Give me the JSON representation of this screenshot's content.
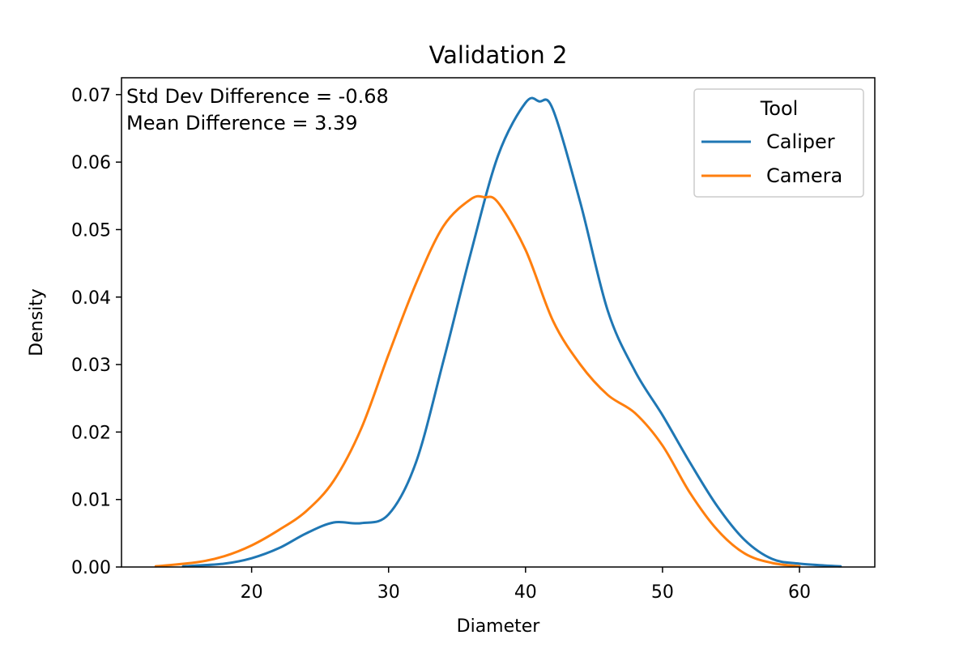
{
  "chart_data": {
    "type": "line",
    "title": "Validation 2",
    "xlabel": "Diameter",
    "ylabel": "Density",
    "xlim": [
      10.5,
      65.5
    ],
    "ylim": [
      0.0,
      0.0725
    ],
    "x_ticks": [
      20,
      30,
      40,
      50,
      60
    ],
    "y_ticks": [
      0.0,
      0.01,
      0.02,
      0.03,
      0.04,
      0.05,
      0.06,
      0.07
    ],
    "y_tick_labels": [
      "0.00",
      "0.01",
      "0.02",
      "0.03",
      "0.04",
      "0.05",
      "0.06",
      "0.07"
    ],
    "grid": false,
    "annotations": [
      "Std Dev Difference = -0.68",
      "Mean Difference = 3.39"
    ],
    "legend": {
      "title": "Tool",
      "placement": "top-right"
    },
    "series": [
      {
        "name": "Caliper",
        "color": "#1f77b4",
        "x": [
          15,
          18,
          20,
          22,
          24,
          26,
          28,
          30,
          32,
          34,
          36,
          38,
          40,
          41,
          42,
          44,
          46,
          48,
          50,
          52,
          54,
          56,
          58,
          60,
          63
        ],
        "y": [
          0.0001,
          0.0005,
          0.0013,
          0.0028,
          0.005,
          0.0066,
          0.0065,
          0.0078,
          0.0155,
          0.0305,
          0.0465,
          0.061,
          0.0688,
          0.069,
          0.0678,
          0.054,
          0.038,
          0.029,
          0.0225,
          0.0155,
          0.009,
          0.004,
          0.0012,
          0.0005,
          0.0001
        ]
      },
      {
        "name": "Camera",
        "color": "#ff7f0e",
        "x": [
          13,
          16,
          18,
          20,
          22,
          24,
          26,
          28,
          30,
          32,
          34,
          36,
          37,
          38,
          40,
          42,
          44,
          46,
          48,
          50,
          52,
          54,
          56,
          58,
          60
        ],
        "y": [
          0.0001,
          0.0007,
          0.0016,
          0.0032,
          0.0055,
          0.0083,
          0.0128,
          0.0205,
          0.0315,
          0.042,
          0.0505,
          0.0545,
          0.0548,
          0.054,
          0.047,
          0.0365,
          0.03,
          0.0255,
          0.0228,
          0.018,
          0.011,
          0.0055,
          0.002,
          0.0006,
          0.0001
        ]
      }
    ]
  }
}
